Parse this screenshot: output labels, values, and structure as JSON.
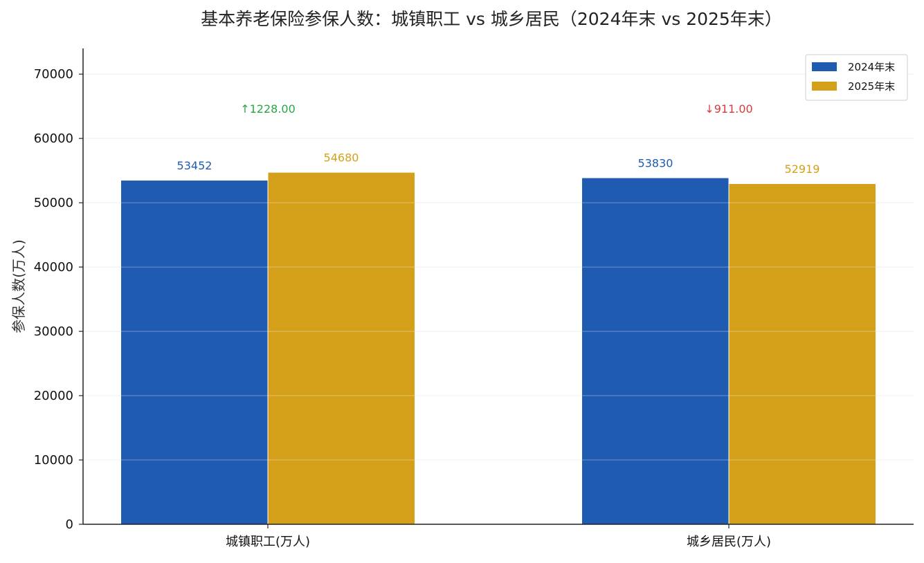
{
  "chart_data": {
    "type": "bar",
    "title": "基本养老保险参保人数：城镇职工 vs 城乡居民（2024年末 vs 2025年末）",
    "xlabel": "",
    "ylabel": "参保人数(万人)",
    "categories": [
      "城镇职工(万人)",
      "城乡居民(万人)"
    ],
    "series": [
      {
        "name": "2024年末",
        "values": [
          53452,
          53830
        ],
        "color": "#1f5bb0",
        "value_labels": [
          "53452",
          "53830"
        ]
      },
      {
        "name": "2025年末",
        "values": [
          54680,
          52919
        ],
        "color": "#d4a01a",
        "value_labels": [
          "54680",
          "52919"
        ]
      }
    ],
    "changes": [
      {
        "text": "↑1228.00",
        "direction": "up",
        "color": "#27a844"
      },
      {
        "text": "↓911.00",
        "direction": "down",
        "color": "#d63c3c"
      }
    ],
    "ylim": [
      0,
      74000
    ],
    "yticks": [
      0,
      10000,
      20000,
      30000,
      40000,
      50000,
      60000,
      70000
    ],
    "ytick_labels": [
      "0",
      "10000",
      "20000",
      "30000",
      "40000",
      "50000",
      "60000",
      "70000"
    ],
    "change_label_level": 64000,
    "grid": true,
    "legend_position": "top-right"
  }
}
